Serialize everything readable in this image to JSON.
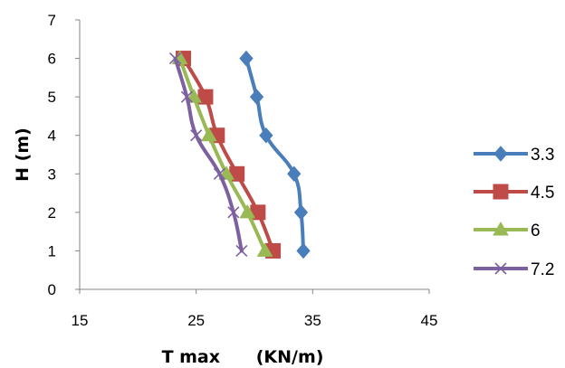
{
  "chart_data": {
    "type": "line",
    "xlabel": "T max      (KN/m)",
    "ylabel": "H (m)",
    "xlim": [
      15,
      45
    ],
    "ylim": [
      0,
      7
    ],
    "xticks": [
      "15",
      "25",
      "35",
      "45"
    ],
    "yticks": [
      "0",
      "1",
      "2",
      "3",
      "4",
      "5",
      "6",
      "7"
    ],
    "grid": false,
    "legend_position": "right",
    "series": [
      {
        "name": "3.3",
        "color": "#4A7EBB",
        "marker": "diamond",
        "points": [
          [
            34.2,
            1
          ],
          [
            34.0,
            2
          ],
          [
            33.4,
            3
          ],
          [
            31.0,
            4
          ],
          [
            30.2,
            5
          ],
          [
            29.3,
            6
          ]
        ]
      },
      {
        "name": "4.5",
        "color": "#BE4B48",
        "marker": "square",
        "points": [
          [
            31.6,
            1
          ],
          [
            30.3,
            2
          ],
          [
            28.5,
            3
          ],
          [
            26.8,
            4
          ],
          [
            25.8,
            5
          ],
          [
            23.9,
            6
          ]
        ]
      },
      {
        "name": "6",
        "color": "#98B954",
        "marker": "triangle",
        "points": [
          [
            30.9,
            1
          ],
          [
            29.4,
            2
          ],
          [
            27.6,
            3
          ],
          [
            26.1,
            4
          ],
          [
            24.8,
            5
          ],
          [
            23.6,
            6
          ]
        ]
      },
      {
        "name": "7.2",
        "color": "#7D60A0",
        "marker": "x",
        "points": [
          [
            28.9,
            1
          ],
          [
            28.2,
            2
          ],
          [
            27.0,
            3
          ],
          [
            25.0,
            4
          ],
          [
            24.2,
            5
          ],
          [
            23.2,
            6
          ]
        ]
      }
    ]
  }
}
